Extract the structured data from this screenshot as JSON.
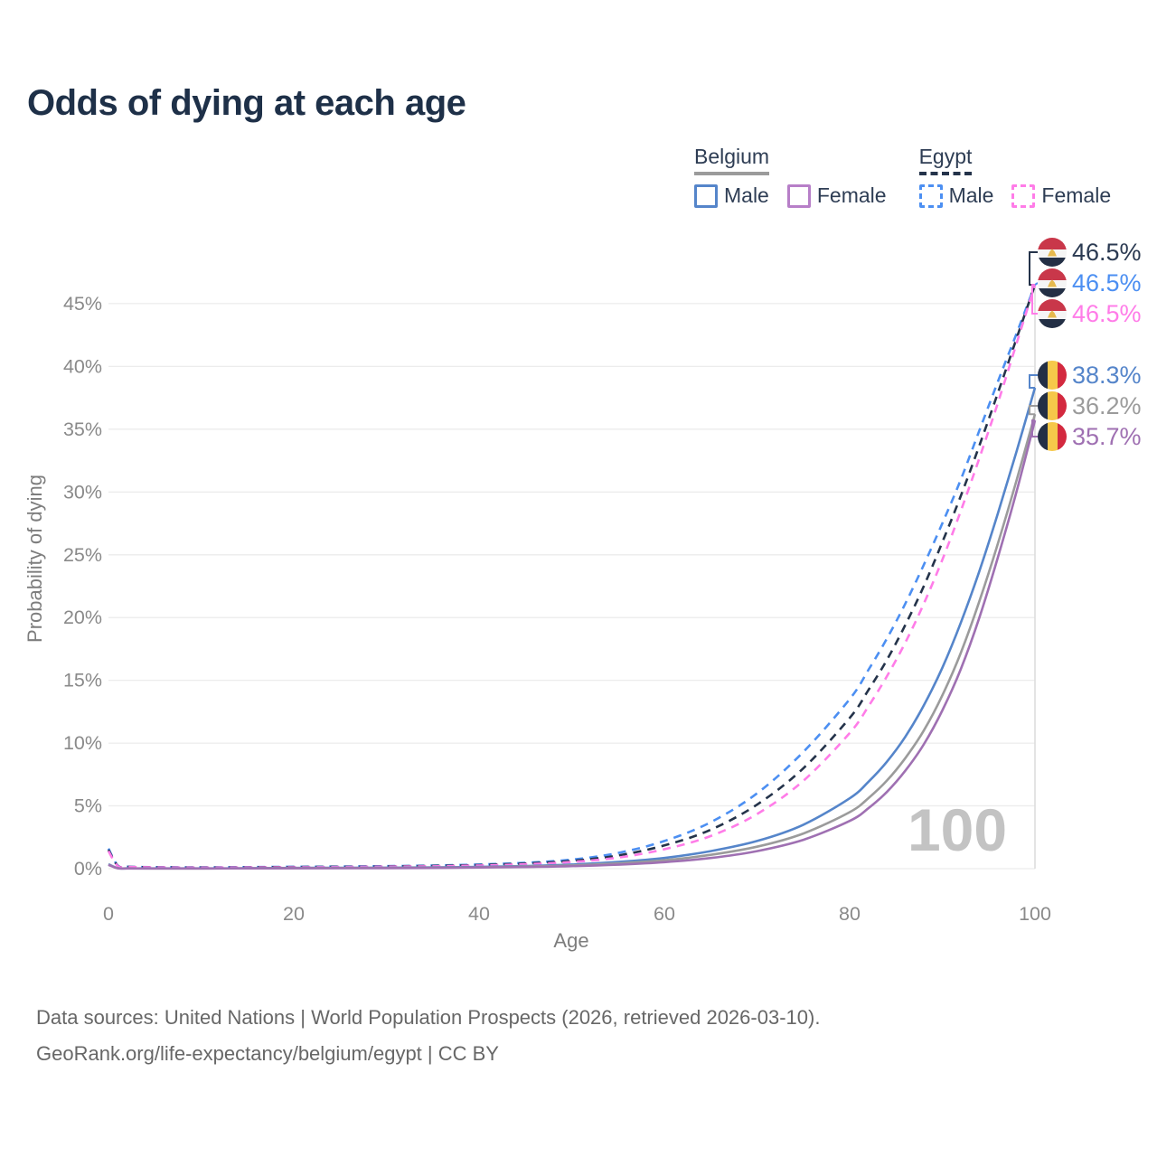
{
  "title": "Odds of dying at each age",
  "watermark": "100",
  "legend": {
    "groups": [
      {
        "label": "Belgium",
        "line_style": "solid",
        "items": [
          {
            "label": "Male",
            "color": "#5585ca"
          },
          {
            "label": "Female",
            "color": "#b77fc8"
          }
        ]
      },
      {
        "label": "Egypt",
        "line_style": "dashed",
        "items": [
          {
            "label": "Male",
            "color": "#4c8ff2"
          },
          {
            "label": "Female",
            "color": "#ff7ce8"
          }
        ]
      }
    ]
  },
  "axes": {
    "x": {
      "title": "Age",
      "min": 0,
      "max": 100,
      "ticks": [
        0,
        20,
        40,
        60,
        80,
        100
      ]
    },
    "y": {
      "title": "Probability of dying",
      "min": 0,
      "max": 46.5,
      "ticks": [
        0,
        5,
        10,
        15,
        20,
        25,
        30,
        35,
        40,
        45
      ],
      "tick_suffix": "%"
    }
  },
  "chart_data": {
    "type": "line",
    "title": "Odds of dying at each age",
    "xlabel": "Age",
    "ylabel": "Probability of dying",
    "xlim": [
      0,
      100
    ],
    "ylim_percent": [
      0,
      49
    ],
    "grid": "horizontal",
    "x": [
      0,
      1,
      2,
      5,
      10,
      15,
      20,
      25,
      30,
      35,
      40,
      45,
      50,
      55,
      60,
      65,
      70,
      75,
      80,
      82,
      84,
      86,
      88,
      90,
      92,
      94,
      96,
      98,
      100
    ],
    "series": [
      {
        "name": "Egypt Male",
        "country": "Egypt",
        "sex": "male",
        "style": "dashed",
        "color": "#4c8ff2",
        "end_label": "46.5%",
        "end_label_color": "#4c8ff2",
        "values": [
          1.6,
          0.25,
          0.16,
          0.12,
          0.1,
          0.12,
          0.15,
          0.17,
          0.2,
          0.25,
          0.33,
          0.47,
          0.72,
          1.25,
          2.2,
          3.7,
          6.0,
          9.3,
          13.5,
          15.8,
          18.3,
          21.1,
          24.2,
          27.5,
          31.0,
          34.9,
          38.8,
          42.6,
          46.5
        ]
      },
      {
        "name": "Egypt Both sexes",
        "country": "Egypt",
        "sex": "both",
        "style": "dashed",
        "color": "#24334a",
        "end_label": "46.5%",
        "end_label_color": "#2b3a52",
        "values": [
          1.5,
          0.23,
          0.15,
          0.11,
          0.09,
          0.11,
          0.13,
          0.15,
          0.18,
          0.22,
          0.29,
          0.41,
          0.62,
          1.05,
          1.85,
          3.1,
          5.1,
          8.0,
          12.0,
          14.2,
          16.6,
          19.4,
          22.5,
          26.0,
          29.7,
          33.7,
          37.9,
          42.2,
          46.5
        ]
      },
      {
        "name": "Egypt Female",
        "country": "Egypt",
        "sex": "female",
        "style": "dashed",
        "color": "#ff7ce8",
        "end_label": "46.5%",
        "end_label_color": "#ff7ce8",
        "values": [
          1.4,
          0.21,
          0.14,
          0.1,
          0.08,
          0.09,
          0.11,
          0.13,
          0.16,
          0.19,
          0.25,
          0.35,
          0.53,
          0.88,
          1.55,
          2.6,
          4.35,
          7.0,
          10.8,
          12.9,
          15.3,
          18.0,
          21.1,
          24.6,
          28.5,
          32.7,
          37.1,
          41.8,
          46.5
        ]
      },
      {
        "name": "Belgium Male",
        "country": "Belgium",
        "sex": "male",
        "style": "solid",
        "color": "#5585ca",
        "end_label": "38.3%",
        "end_label_color": "#5585ca",
        "values": [
          0.35,
          0.04,
          0.02,
          0.02,
          0.02,
          0.03,
          0.06,
          0.07,
          0.08,
          0.1,
          0.14,
          0.21,
          0.33,
          0.53,
          0.85,
          1.4,
          2.2,
          3.5,
          5.6,
          6.9,
          8.5,
          10.5,
          13.0,
          16.0,
          19.6,
          23.7,
          28.3,
          33.2,
          38.3
        ]
      },
      {
        "name": "Belgium Both sexes",
        "country": "Belgium",
        "sex": "both",
        "style": "solid",
        "color": "#9b9b9b",
        "end_label": "36.2%",
        "end_label_color": "#9b9b9b",
        "values": [
          0.32,
          0.035,
          0.02,
          0.015,
          0.015,
          0.025,
          0.04,
          0.05,
          0.06,
          0.08,
          0.11,
          0.17,
          0.26,
          0.42,
          0.67,
          1.1,
          1.75,
          2.8,
          4.5,
          5.6,
          7.0,
          8.8,
          11.0,
          13.8,
          17.2,
          21.3,
          25.9,
          30.9,
          36.2
        ]
      },
      {
        "name": "Belgium Female",
        "country": "Belgium",
        "sex": "female",
        "style": "solid",
        "color": "#9f70b2",
        "end_label": "35.7%",
        "end_label_color": "#9f70b2",
        "values": [
          0.3,
          0.03,
          0.015,
          0.012,
          0.012,
          0.02,
          0.03,
          0.035,
          0.045,
          0.06,
          0.09,
          0.13,
          0.2,
          0.32,
          0.52,
          0.85,
          1.4,
          2.3,
          3.8,
          4.8,
          6.1,
          7.8,
          9.9,
          12.6,
          15.9,
          20.0,
          24.8,
          30.0,
          35.7
        ]
      }
    ]
  },
  "flags": {
    "egypt": {
      "red": "#c9374a",
      "white": "#f5f5f5",
      "black": "#232f45",
      "gold": "#e5b94e"
    },
    "belgium": {
      "black": "#232f45",
      "yellow": "#f6c84a",
      "red": "#d3293f"
    }
  },
  "colors": {
    "title_text": "#1e3048",
    "axis_text": "#8a8a8a",
    "axis_title_text": "#7d7d7d",
    "grid": "#ececec",
    "end_line": "#dcdcdc",
    "watermark_text": "#c3c3c3",
    "footer_text": "#676767"
  },
  "footer": {
    "line1": "Data sources: United Nations | World Population Prospects (2026, retrieved 2026-03-10).",
    "line2": "GeoRank.org/life-expectancy/belgium/egypt | CC BY"
  }
}
